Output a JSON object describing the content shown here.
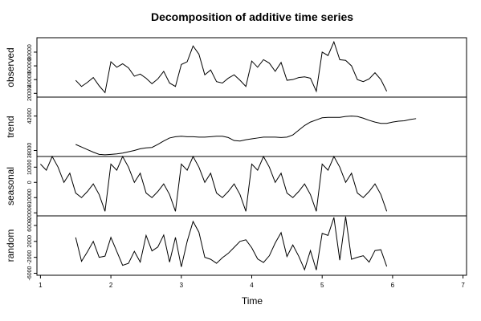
{
  "chart_data": {
    "type": "line",
    "title": "Decomposition of additive time series",
    "xlabel": "Time",
    "xlim": [
      0.95,
      7.05
    ],
    "xticks": [
      1,
      2,
      3,
      4,
      5,
      6,
      7
    ],
    "grid": false,
    "panels": [
      {
        "name": "observed",
        "ylabel": "observed",
        "ylim": [
          14500,
          101000
        ],
        "yticks": [
          20000,
          40000,
          60000,
          80000
        ],
        "series": [
          {
            "x": [
              1.5,
              1.5833,
              1.6667,
              1.75,
              1.8333,
              1.9167,
              2.0,
              2.0833,
              2.1667,
              2.25,
              2.3333,
              2.4167,
              2.5,
              2.5833,
              2.6667,
              2.75,
              2.8333,
              2.9167,
              3.0,
              3.0833,
              3.1667,
              3.25,
              3.3333,
              3.4167,
              3.5,
              3.5833,
              3.6667,
              3.75,
              3.8333,
              3.9167,
              4.0,
              4.0833,
              4.1667,
              4.25,
              4.3333,
              4.4167,
              4.5,
              4.5833,
              4.6667,
              4.75,
              4.8333,
              4.9167,
              5.0,
              5.0833,
              5.1667,
              5.25,
              5.3333,
              5.4167,
              5.5,
              5.5833,
              5.6667,
              5.75,
              5.8333,
              5.9167
            ],
            "y": [
              39000,
              30000,
              36000,
              43000,
              31000,
              21000,
              66000,
              58000,
              63000,
              57000,
              45000,
              48000,
              42000,
              34000,
              41000,
              52000,
              35000,
              30000,
              62000,
              66000,
              89000,
              77000,
              47000,
              54000,
              37000,
              35000,
              42000,
              47000,
              39000,
              30000,
              67000,
              58000,
              69000,
              64000,
              52000,
              65000,
              39000,
              40000,
              43000,
              44000,
              42000,
              23000,
              80000,
              75000,
              95000,
              69000,
              68000,
              60000,
              40000,
              37000,
              41000,
              50000,
              40000,
              23000
            ]
          }
        ]
      },
      {
        "name": "trend",
        "ylabel": "trend",
        "ylim": [
          37300,
          44200
        ],
        "yticks": [
          38000,
          42000
        ],
        "series": [
          {
            "x": [
              1.5,
              1.5833,
              1.6667,
              1.75,
              1.8333,
              1.9167,
              2.0,
              2.0833,
              2.1667,
              2.25,
              2.3333,
              2.4167,
              2.5,
              2.5833,
              2.6667,
              2.75,
              2.8333,
              2.9167,
              3.0,
              3.0833,
              3.1667,
              3.25,
              3.3333,
              3.4167,
              3.5,
              3.5833,
              3.6667,
              3.75,
              3.8333,
              3.9167,
              4.0,
              4.0833,
              4.1667,
              4.25,
              4.3333,
              4.4167,
              4.5,
              4.5833,
              4.6667,
              4.75,
              4.8333,
              4.9167,
              5.0,
              5.0833,
              5.1667,
              5.25,
              5.3333,
              5.4167,
              5.5,
              5.5833,
              5.6667,
              5.75,
              5.8333,
              5.9167,
              6.0,
              6.0833,
              6.1667,
              6.25,
              6.3333
            ],
            "y": [
              38700,
              38400,
              38100,
              37800,
              37550,
              37500,
              37550,
              37600,
              37700,
              37850,
              38000,
              38200,
              38300,
              38350,
              38700,
              39100,
              39450,
              39600,
              39650,
              39600,
              39600,
              39550,
              39550,
              39600,
              39650,
              39650,
              39500,
              39150,
              39100,
              39250,
              39350,
              39450,
              39550,
              39550,
              39550,
              39500,
              39550,
              39800,
              40350,
              40900,
              41300,
              41550,
              41800,
              41850,
              41850,
              41850,
              41950,
              42000,
              41950,
              41750,
              41500,
              41300,
              41150,
              41150,
              41300,
              41400,
              41450,
              41600,
              41700
            ]
          }
        ]
      },
      {
        "name": "seasonal",
        "ylabel": "seasonal",
        "ylim": [
          -22000,
          17000
        ],
        "yticks": [
          -20000,
          -10000,
          0,
          10000
        ],
        "series": [
          {
            "x": [
              1.0,
              1.0833,
              1.1667,
              1.25,
              1.3333,
              1.4167,
              1.5,
              1.5833,
              1.6667,
              1.75,
              1.8333,
              1.9167,
              2.0,
              2.0833,
              2.1667,
              2.25,
              2.3333,
              2.4167,
              2.5,
              2.5833,
              2.6667,
              2.75,
              2.8333,
              2.9167,
              3.0,
              3.0833,
              3.1667,
              3.25,
              3.3333,
              3.4167,
              3.5,
              3.5833,
              3.6667,
              3.75,
              3.8333,
              3.9167,
              4.0,
              4.0833,
              4.1667,
              4.25,
              4.3333,
              4.4167,
              4.5,
              4.5833,
              4.6667,
              4.75,
              4.8333,
              4.9167,
              5.0,
              5.0833,
              5.1667,
              5.25,
              5.3333,
              5.4167,
              5.5,
              5.5833,
              5.6667,
              5.75,
              5.8333,
              5.9167
            ],
            "y": [
              12000,
              8000,
              17000,
              10000,
              0,
              6000,
              -7000,
              -10000,
              -6000,
              -1000,
              -8000,
              -19000,
              12000,
              8000,
              17000,
              10000,
              0,
              6000,
              -7000,
              -10000,
              -6000,
              -1000,
              -8000,
              -19000,
              12000,
              8000,
              17000,
              10000,
              0,
              6000,
              -7000,
              -10000,
              -6000,
              -1000,
              -8000,
              -19000,
              12000,
              8000,
              17000,
              10000,
              0,
              6000,
              -7000,
              -10000,
              -6000,
              -1000,
              -8000,
              -19000,
              12000,
              8000,
              17000,
              10000,
              0,
              6000,
              -7000,
              -10000,
              -6000,
              -1000,
              -8000,
              -19000
            ]
          }
        ]
      },
      {
        "name": "random",
        "ylabel": "random",
        "ylim": [
          -6500,
          8400
        ],
        "yticks": [
          -6000,
          -2000,
          2000,
          6000
        ],
        "series": [
          {
            "x": [
              1.5,
              1.5833,
              1.6667,
              1.75,
              1.8333,
              1.9167,
              2.0,
              2.0833,
              2.1667,
              2.25,
              2.3333,
              2.4167,
              2.5,
              2.5833,
              2.6667,
              2.75,
              2.8333,
              2.9167,
              3.0,
              3.0833,
              3.1667,
              3.25,
              3.3333,
              3.4167,
              3.5,
              3.5833,
              3.6667,
              3.75,
              3.8333,
              3.9167,
              4.0,
              4.0833,
              4.1667,
              4.25,
              4.3333,
              4.4167,
              4.5,
              4.5833,
              4.6667,
              4.75,
              4.8333,
              4.9167,
              5.0,
              5.0833,
              5.1667,
              5.25,
              5.3333,
              5.4167,
              5.5,
              5.5833,
              5.6667,
              5.75,
              5.8333,
              5.9167
            ],
            "y": [
              3000,
              -3000,
              -600,
              2000,
              -2000,
              -1700,
              3000,
              -500,
              -4000,
              -3500,
              -500,
              -3200,
              3500,
              -400,
              600,
              3600,
              -3200,
              3000,
              -4400,
              2000,
              7000,
              4300,
              -2000,
              -2500,
              -3500,
              -2100,
              -1000,
              500,
              2000,
              2400,
              400,
              -2400,
              -3300,
              -1600,
              1600,
              4200,
              -1800,
              1100,
              -1700,
              -5100,
              -300,
              -5200,
              4000,
              3500,
              8000,
              -2700,
              8200,
              -2500,
              -2000,
              -1600,
              -3200,
              -300,
              -100,
              -4300
            ]
          }
        ]
      }
    ]
  }
}
